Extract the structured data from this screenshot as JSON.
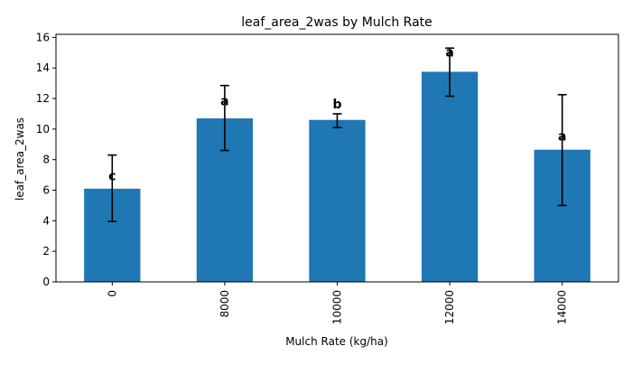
{
  "chart_data": {
    "type": "bar",
    "title": "leaf_area_2was by Mulch Rate",
    "xlabel": "Mulch Rate (kg/ha)",
    "ylabel": "leaf_area_2was",
    "categories": [
      "0",
      "8000",
      "10000",
      "12000",
      "14000"
    ],
    "values": [
      6.1,
      10.7,
      10.6,
      13.75,
      8.65
    ],
    "error_low": [
      3.95,
      8.6,
      10.1,
      12.15,
      5.0
    ],
    "error_high": [
      8.3,
      12.85,
      11.0,
      15.3,
      12.25
    ],
    "letters": [
      "c",
      "a",
      "b",
      "a",
      "a"
    ],
    "letter_y": [
      6.95,
      11.85,
      11.65,
      15.05,
      9.55
    ],
    "ylim": [
      0,
      16.2
    ],
    "yticks": [
      0,
      2,
      4,
      6,
      8,
      10,
      12,
      14,
      16
    ],
    "bar_color": "#1f77b4",
    "grid": false,
    "legend": "none"
  }
}
